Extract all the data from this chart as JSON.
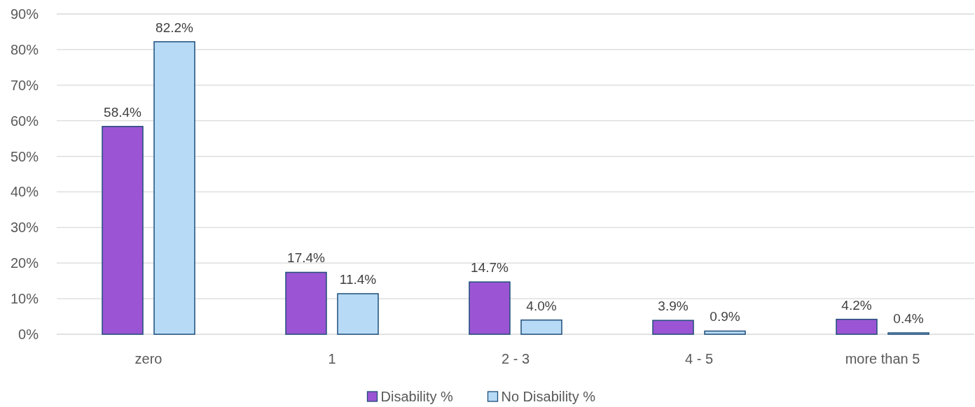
{
  "chart_data": {
    "type": "bar",
    "categories": [
      "zero",
      "1",
      "2 - 3",
      "4 - 5",
      "more than 5"
    ],
    "series": [
      {
        "name": "Disability %",
        "color": "#9b55d4",
        "values": [
          58.4,
          17.4,
          14.7,
          3.9,
          4.2
        ],
        "value_labels": [
          "58.4%",
          "17.4%",
          "14.7%",
          "3.9%",
          "4.2%"
        ]
      },
      {
        "name": "No Disability %",
        "color": "#b7dbf6",
        "values": [
          82.2,
          11.4,
          4.0,
          0.9,
          0.4
        ],
        "value_labels": [
          "82.2%",
          "11.4%",
          "4.0%",
          "0.9%",
          "0.4%"
        ]
      }
    ],
    "ylim": [
      0,
      90
    ],
    "yticks": [
      {
        "value": 0,
        "label": "0%"
      },
      {
        "value": 10,
        "label": "10%"
      },
      {
        "value": 20,
        "label": "20%"
      },
      {
        "value": 30,
        "label": "30%"
      },
      {
        "value": 40,
        "label": "40%"
      },
      {
        "value": 50,
        "label": "50%"
      },
      {
        "value": 60,
        "label": "60%"
      },
      {
        "value": 70,
        "label": "70%"
      },
      {
        "value": 80,
        "label": "80%"
      },
      {
        "value": 90,
        "label": "90%"
      }
    ],
    "grid": "y",
    "legend": "bottom"
  }
}
